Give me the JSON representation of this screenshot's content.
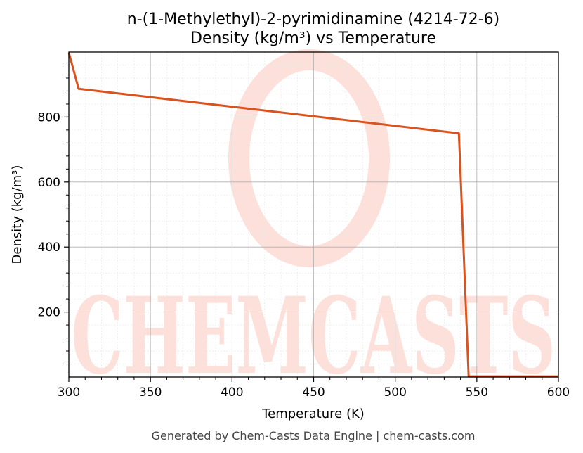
{
  "chart_data": {
    "type": "line",
    "title": "n-(1-Methylethyl)-2-pyrimidinamine (4214-72-6)",
    "subtitle": "Density (kg/m³) vs Temperature",
    "xlabel": "Temperature (K)",
    "ylabel": "Density (kg/m³)",
    "xlim": [
      300,
      600
    ],
    "ylim": [
      0,
      1000
    ],
    "xticks": [
      300,
      350,
      400,
      450,
      500,
      550,
      600
    ],
    "yticks": [
      200,
      400,
      600,
      800
    ],
    "grid": true,
    "series": [
      {
        "x": [
          300,
          306,
          539,
          545,
          600
        ],
        "y": [
          998,
          887,
          750,
          2,
          2
        ]
      }
    ],
    "line_color": "#d9531e"
  },
  "watermark": {
    "text": "CHEMCASTS",
    "color": "#fde0da"
  },
  "footer": "Generated by Chem-Casts Data Engine | chem-casts.com"
}
